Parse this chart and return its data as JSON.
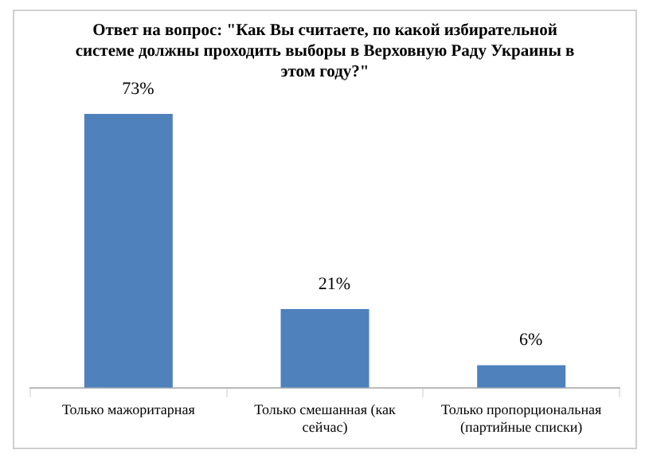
{
  "chart_data": {
    "type": "bar",
    "title": "Ответ на вопрос: \"Как Вы считаете, по какой избирательной системе должны проходить выборы в Верховную Раду Украины в этом году?\"",
    "categories": [
      "Только мажоритарная",
      "Только смешанная (как сейчас)",
      "Только пропорциональная (партийные списки)"
    ],
    "values": [
      73,
      21,
      6
    ],
    "value_labels": [
      "73%",
      "21%",
      "6%"
    ],
    "color": "#4f81bd"
  }
}
